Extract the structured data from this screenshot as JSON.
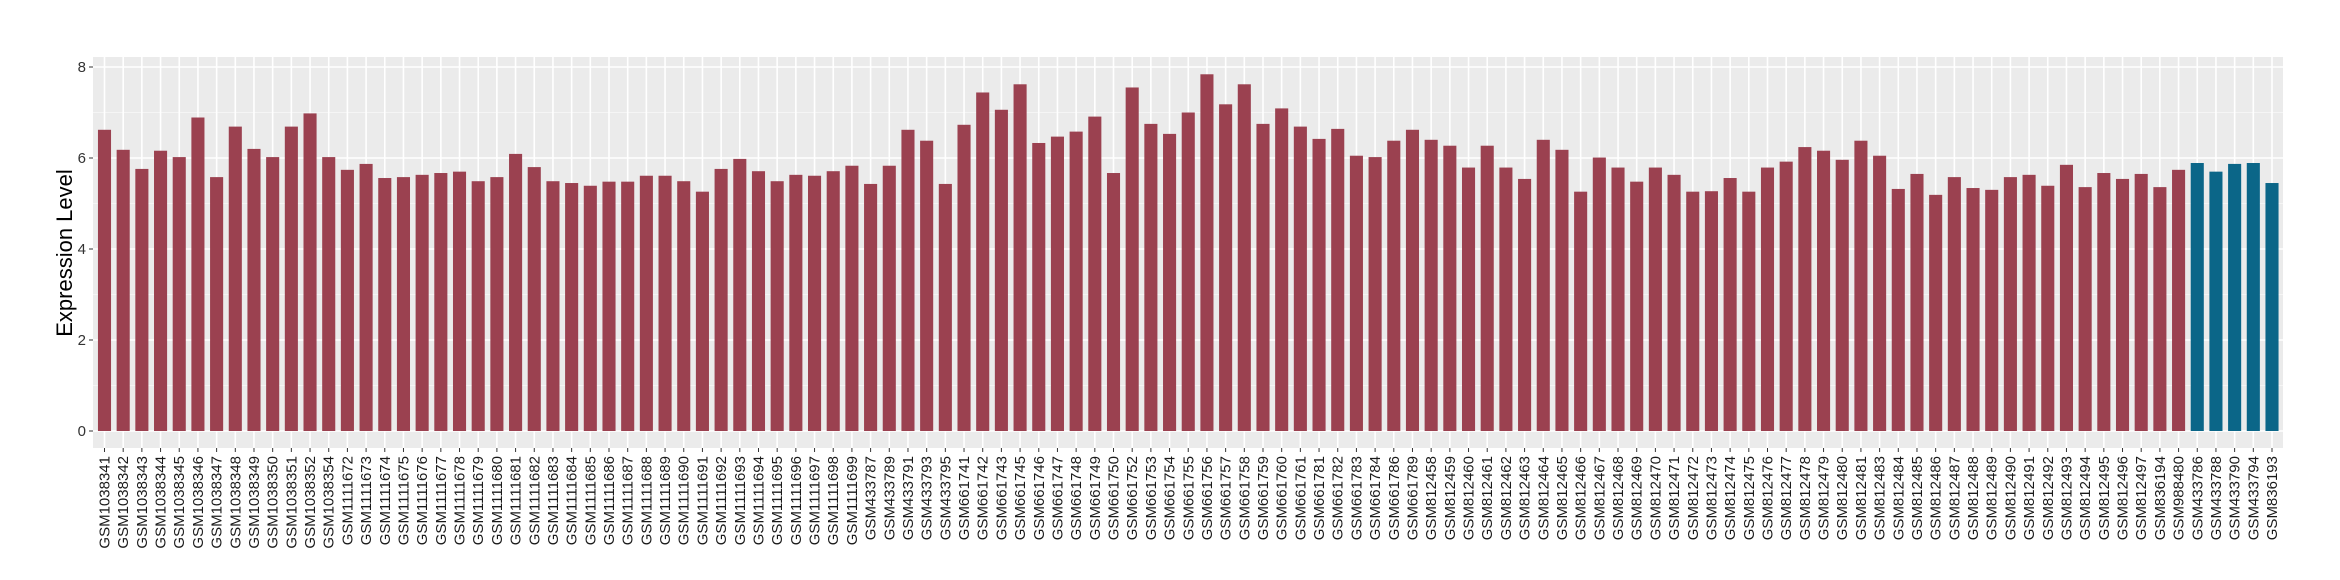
{
  "chart_data": {
    "type": "bar",
    "title": "",
    "xlabel": "",
    "ylabel": "Expression Level",
    "ylim": [
      0,
      8.2
    ],
    "yticks": [
      0,
      2,
      4,
      6,
      8
    ],
    "grid": true,
    "legend": "none",
    "colors": {
      "group1": "#9b4150",
      "group2": "#0b6688",
      "panel": "#ebebeb",
      "grid": "#ffffff"
    },
    "categories": [
      "GSM1038341",
      "GSM1038342",
      "GSM1038343",
      "GSM1038344",
      "GSM1038345",
      "GSM1038346",
      "GSM1038347",
      "GSM1038348",
      "GSM1038349",
      "GSM1038350",
      "GSM1038351",
      "GSM1038352",
      "GSM1038354",
      "GSM1111672",
      "GSM1111673",
      "GSM1111674",
      "GSM1111675",
      "GSM1111676",
      "GSM1111677",
      "GSM1111678",
      "GSM1111679",
      "GSM1111680",
      "GSM1111681",
      "GSM1111682",
      "GSM1111683",
      "GSM1111684",
      "GSM1111685",
      "GSM1111686",
      "GSM1111687",
      "GSM1111688",
      "GSM1111689",
      "GSM1111690",
      "GSM1111691",
      "GSM1111692",
      "GSM1111693",
      "GSM1111694",
      "GSM1111695",
      "GSM1111696",
      "GSM1111697",
      "GSM1111698",
      "GSM1111699",
      "GSM433787",
      "GSM433789",
      "GSM433791",
      "GSM433793",
      "GSM433795",
      "GSM661741",
      "GSM661742",
      "GSM661743",
      "GSM661745",
      "GSM661746",
      "GSM661747",
      "GSM661748",
      "GSM661749",
      "GSM661750",
      "GSM661752",
      "GSM661753",
      "GSM661754",
      "GSM661755",
      "GSM661756",
      "GSM661757",
      "GSM661758",
      "GSM661759",
      "GSM661760",
      "GSM661761",
      "GSM661781",
      "GSM661782",
      "GSM661783",
      "GSM661784",
      "GSM661786",
      "GSM661789",
      "GSM812458",
      "GSM812459",
      "GSM812460",
      "GSM812461",
      "GSM812462",
      "GSM812463",
      "GSM812464",
      "GSM812465",
      "GSM812466",
      "GSM812467",
      "GSM812468",
      "GSM812469",
      "GSM812470",
      "GSM812471",
      "GSM812472",
      "GSM812473",
      "GSM812474",
      "GSM812475",
      "GSM812476",
      "GSM812477",
      "GSM812478",
      "GSM812479",
      "GSM812480",
      "GSM812481",
      "GSM812483",
      "GSM812484",
      "GSM812485",
      "GSM812486",
      "GSM812487",
      "GSM812488",
      "GSM812489",
      "GSM812490",
      "GSM812491",
      "GSM812492",
      "GSM812493",
      "GSM812494",
      "GSM812495",
      "GSM812496",
      "GSM812497",
      "GSM836194",
      "GSM988480",
      "GSM433786",
      "GSM433788",
      "GSM433790",
      "GSM433794",
      "GSM836193"
    ],
    "values": [
      6.62,
      6.18,
      5.76,
      6.16,
      6.02,
      6.89,
      5.58,
      6.69,
      6.2,
      6.02,
      6.69,
      6.98,
      6.02,
      5.74,
      5.87,
      5.56,
      5.58,
      5.63,
      5.67,
      5.7,
      5.49,
      5.58,
      6.09,
      5.8,
      5.49,
      5.45,
      5.39,
      5.48,
      5.48,
      5.61,
      5.61,
      5.49,
      5.26,
      5.76,
      5.98,
      5.71,
      5.49,
      5.63,
      5.61,
      5.71,
      5.83,
      5.43,
      5.83,
      6.62,
      6.38,
      5.43,
      6.73,
      7.44,
      7.06,
      7.62,
      6.33,
      6.47,
      6.58,
      6.91,
      5.67,
      7.55,
      6.75,
      6.53,
      7.0,
      7.84,
      7.18,
      7.62,
      6.75,
      7.09,
      6.69,
      6.42,
      6.64,
      6.05,
      6.02,
      6.38,
      6.62,
      6.4,
      6.27,
      5.79,
      6.27,
      5.79,
      5.54,
      6.4,
      6.18,
      5.26,
      6.01,
      5.79,
      5.48,
      5.79,
      5.63,
      5.26,
      5.27,
      5.56,
      5.26,
      5.79,
      5.92,
      6.24,
      6.16,
      5.96,
      6.38,
      6.05,
      5.32,
      5.65,
      5.19,
      5.58,
      5.34,
      5.3,
      5.58,
      5.63,
      5.39,
      5.85,
      5.36,
      5.67,
      5.54,
      5.65,
      5.36,
      5.74,
      5.89,
      5.7,
      5.87,
      5.89,
      5.45
    ],
    "groups": [
      "group1",
      "group1",
      "group1",
      "group1",
      "group1",
      "group1",
      "group1",
      "group1",
      "group1",
      "group1",
      "group1",
      "group1",
      "group1",
      "group1",
      "group1",
      "group1",
      "group1",
      "group1",
      "group1",
      "group1",
      "group1",
      "group1",
      "group1",
      "group1",
      "group1",
      "group1",
      "group1",
      "group1",
      "group1",
      "group1",
      "group1",
      "group1",
      "group1",
      "group1",
      "group1",
      "group1",
      "group1",
      "group1",
      "group1",
      "group1",
      "group1",
      "group1",
      "group1",
      "group1",
      "group1",
      "group1",
      "group1",
      "group1",
      "group1",
      "group1",
      "group1",
      "group1",
      "group1",
      "group1",
      "group1",
      "group1",
      "group1",
      "group1",
      "group1",
      "group1",
      "group1",
      "group1",
      "group1",
      "group1",
      "group1",
      "group1",
      "group1",
      "group1",
      "group1",
      "group1",
      "group1",
      "group1",
      "group1",
      "group1",
      "group1",
      "group1",
      "group1",
      "group1",
      "group1",
      "group1",
      "group1",
      "group1",
      "group1",
      "group1",
      "group1",
      "group1",
      "group1",
      "group1",
      "group1",
      "group1",
      "group1",
      "group1",
      "group1",
      "group1",
      "group1",
      "group1",
      "group1",
      "group1",
      "group1",
      "group1",
      "group1",
      "group1",
      "group1",
      "group1",
      "group1",
      "group1",
      "group1",
      "group1",
      "group1",
      "group1",
      "group1",
      "group1",
      "group2",
      "group2",
      "group2",
      "group2",
      "group2"
    ]
  }
}
